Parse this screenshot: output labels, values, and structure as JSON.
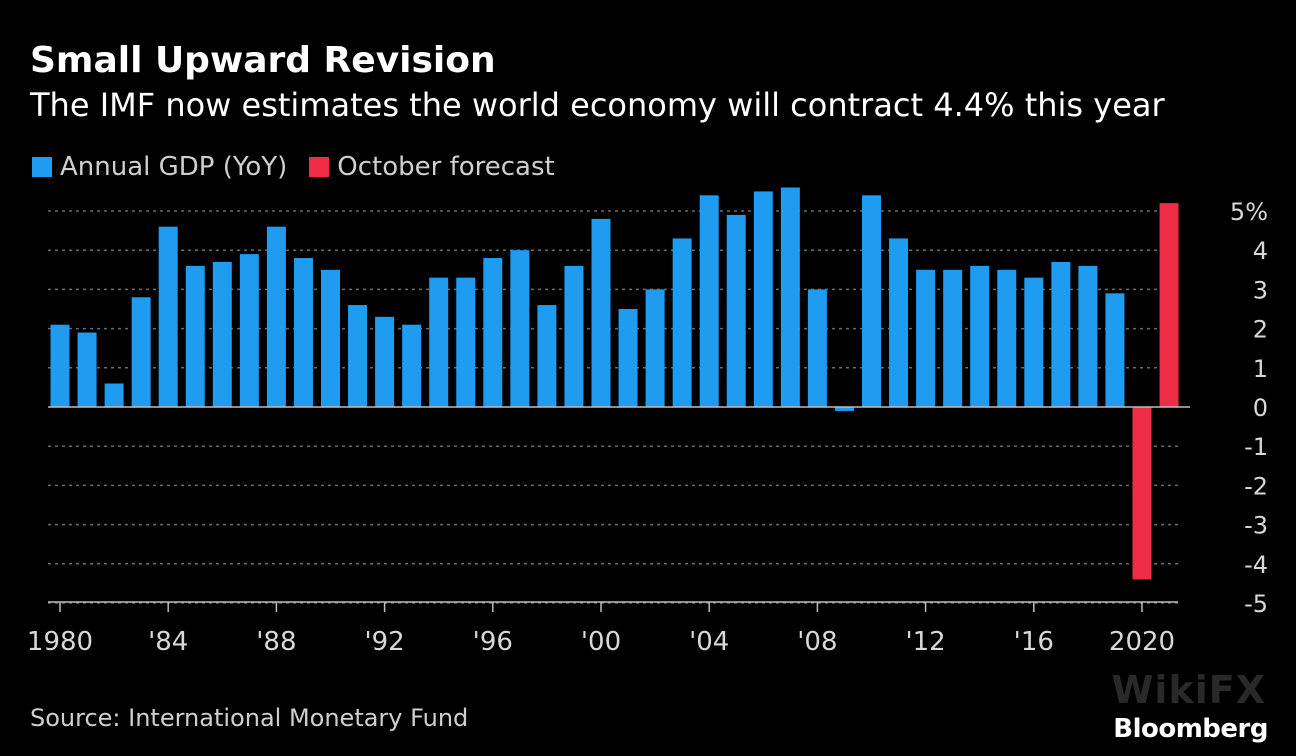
{
  "title": "Small Upward Revision",
  "subtitle": "The IMF now estimates the world economy will contract 4.4% this year",
  "legend": [
    {
      "label": "Annual GDP (YoY)",
      "color": "#1f9bf0"
    },
    {
      "label": "October forecast",
      "color": "#ef2d47"
    }
  ],
  "source": "Source: International Monetary Fund",
  "brand": "Bloomberg",
  "watermark": "WikiFX",
  "chart_data": {
    "type": "bar",
    "x": [
      1980,
      1981,
      1982,
      1983,
      1984,
      1985,
      1986,
      1987,
      1988,
      1989,
      1990,
      1991,
      1992,
      1993,
      1994,
      1995,
      1996,
      1997,
      1998,
      1999,
      2000,
      2001,
      2002,
      2003,
      2004,
      2005,
      2006,
      2007,
      2008,
      2009,
      2010,
      2011,
      2012,
      2013,
      2014,
      2015,
      2016,
      2017,
      2018,
      2019,
      2020,
      2021
    ],
    "series": [
      {
        "name": "Annual GDP (YoY)",
        "color": "#1f9bf0",
        "values": [
          2.1,
          1.9,
          0.6,
          2.8,
          4.6,
          3.6,
          3.7,
          3.9,
          4.6,
          3.8,
          3.5,
          2.6,
          2.3,
          2.1,
          3.3,
          3.3,
          3.8,
          4.0,
          2.6,
          3.6,
          4.8,
          2.5,
          3.0,
          4.3,
          5.4,
          4.9,
          5.5,
          5.6,
          3.0,
          -0.1,
          5.4,
          4.3,
          3.5,
          3.5,
          3.6,
          3.5,
          3.3,
          3.7,
          3.6,
          2.9,
          null,
          null
        ]
      },
      {
        "name": "October forecast",
        "color": "#ef2d47",
        "values": [
          null,
          null,
          null,
          null,
          null,
          null,
          null,
          null,
          null,
          null,
          null,
          null,
          null,
          null,
          null,
          null,
          null,
          null,
          null,
          null,
          null,
          null,
          null,
          null,
          null,
          null,
          null,
          null,
          null,
          null,
          null,
          null,
          null,
          null,
          null,
          null,
          null,
          null,
          null,
          null,
          -4.4,
          5.2
        ]
      }
    ],
    "xticks": [
      {
        "year": 1980,
        "label": "1980"
      },
      {
        "year": 1984,
        "label": "'84"
      },
      {
        "year": 1988,
        "label": "'88"
      },
      {
        "year": 1992,
        "label": "'92"
      },
      {
        "year": 1996,
        "label": "'96"
      },
      {
        "year": 2000,
        "label": "'00"
      },
      {
        "year": 2004,
        "label": "'04"
      },
      {
        "year": 2008,
        "label": "'08"
      },
      {
        "year": 2012,
        "label": "'12"
      },
      {
        "year": 2016,
        "label": "'16"
      },
      {
        "year": 2020,
        "label": "2020"
      }
    ],
    "yticks": [
      {
        "value": 5,
        "label": "5%"
      },
      {
        "value": 4,
        "label": "4"
      },
      {
        "value": 3,
        "label": "3"
      },
      {
        "value": 2,
        "label": "2"
      },
      {
        "value": 1,
        "label": "1"
      },
      {
        "value": 0,
        "label": "0"
      },
      {
        "value": -1,
        "label": "-1"
      },
      {
        "value": -2,
        "label": "-2"
      },
      {
        "value": -3,
        "label": "-3"
      },
      {
        "value": -4,
        "label": "-4"
      },
      {
        "value": -5,
        "label": "-5"
      }
    ],
    "ylim": [
      -5,
      5.5
    ],
    "grid": true,
    "legend_position": "top-left",
    "yaxis_position": "right"
  }
}
